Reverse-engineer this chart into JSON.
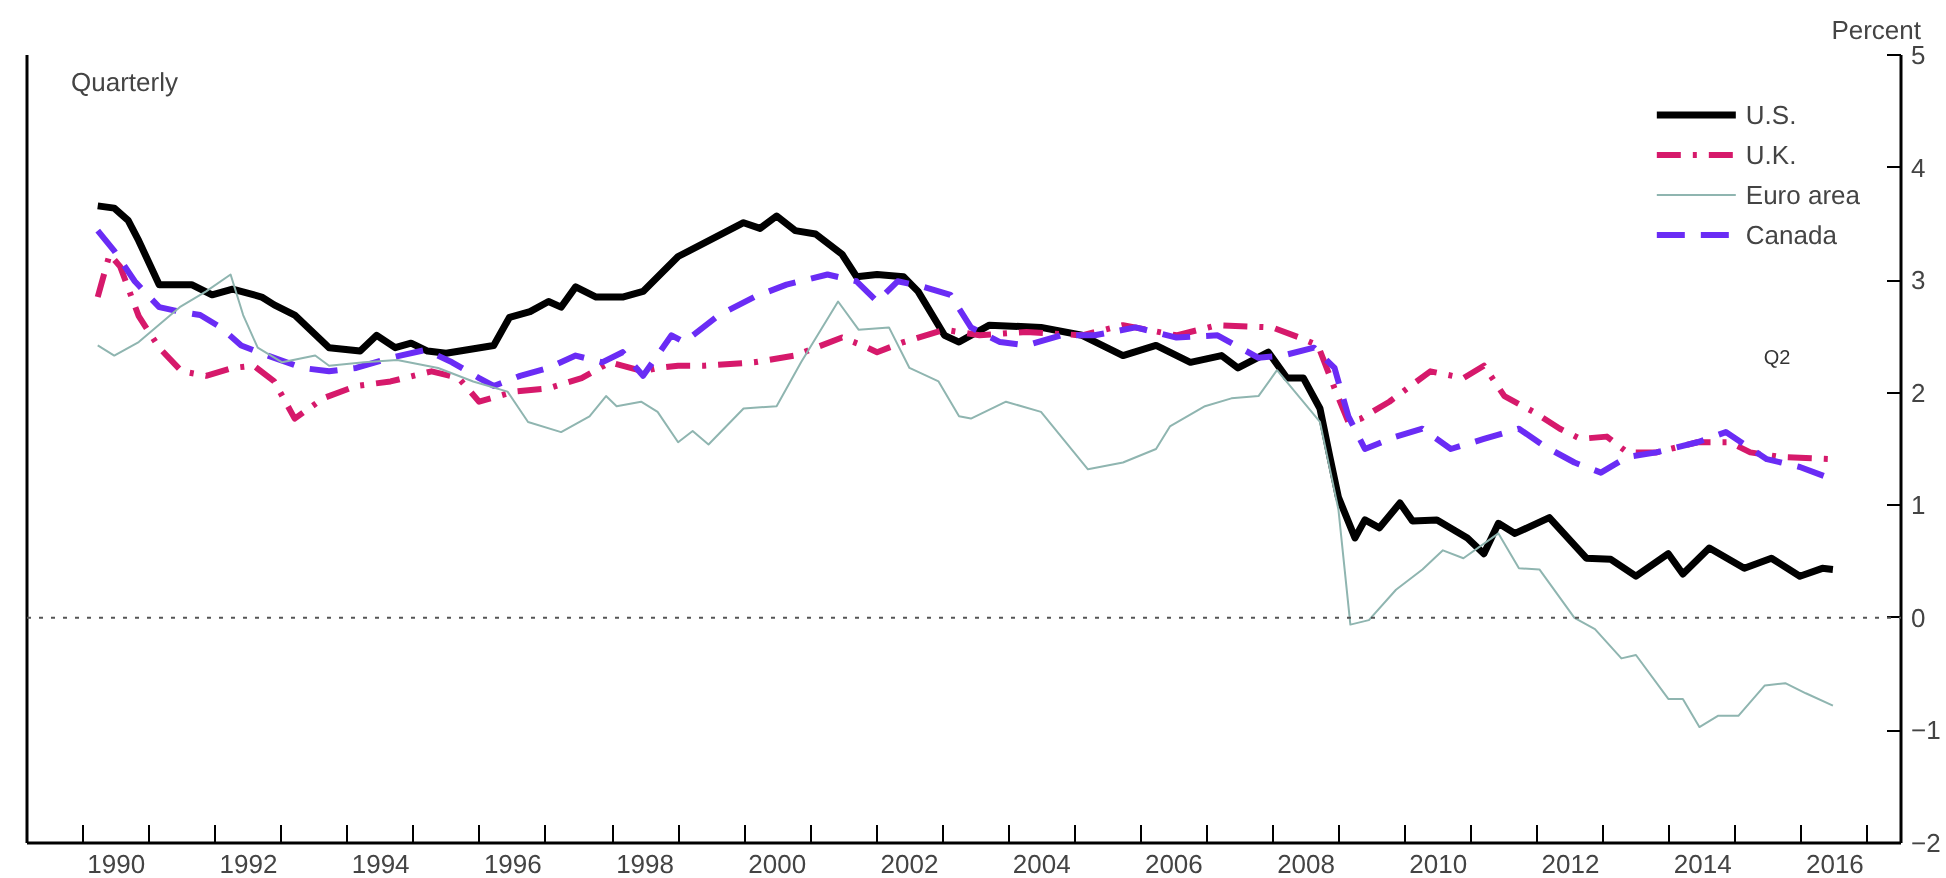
{
  "chart_data": {
    "type": "line",
    "ylabel": "Percent",
    "annotations": [
      "Quarterly",
      "Q2"
    ],
    "xlim": [
      1989.15,
      2017.5
    ],
    "ylim": [
      -2,
      5
    ],
    "yticks": [
      -2,
      -1,
      0,
      1,
      2,
      3,
      4,
      5
    ],
    "xticks": [
      {
        "value": 1990,
        "label": null
      },
      {
        "value": 1991,
        "label": null
      },
      {
        "value": 1992,
        "label": null
      },
      {
        "value": 1993,
        "label": null
      },
      {
        "value": 1994,
        "label": null
      },
      {
        "value": 1995,
        "label": null
      },
      {
        "value": 1996,
        "label": null
      },
      {
        "value": 1997,
        "label": null
      },
      {
        "value": 1998,
        "label": null
      },
      {
        "value": 1999,
        "label": null
      },
      {
        "value": 2000,
        "label": null
      },
      {
        "value": 2001,
        "label": null
      },
      {
        "value": 2002,
        "label": null
      },
      {
        "value": 2003,
        "label": null
      },
      {
        "value": 2004,
        "label": null
      },
      {
        "value": 2005,
        "label": null
      },
      {
        "value": 2006,
        "label": null
      },
      {
        "value": 2007,
        "label": null
      },
      {
        "value": 2008,
        "label": null
      },
      {
        "value": 2009,
        "label": null
      },
      {
        "value": 2010,
        "label": null
      },
      {
        "value": 2011,
        "label": null
      },
      {
        "value": 2012,
        "label": null
      },
      {
        "value": 2013,
        "label": null
      },
      {
        "value": 2014,
        "label": null
      },
      {
        "value": 2015,
        "label": null
      },
      {
        "value": 2016,
        "label": null
      },
      {
        "value": 2017,
        "label": null
      },
      {
        "value": 1990.5,
        "label": "1990"
      },
      {
        "value": 1992.5,
        "label": "1992"
      },
      {
        "value": 1994.5,
        "label": "1994"
      },
      {
        "value": 1996.5,
        "label": "1996"
      },
      {
        "value": 1998.5,
        "label": "1998"
      },
      {
        "value": 2000.5,
        "label": "2000"
      },
      {
        "value": 2002.5,
        "label": "2002"
      },
      {
        "value": 2004.5,
        "label": "2004"
      },
      {
        "value": 2006.5,
        "label": "2006"
      },
      {
        "value": 2008.5,
        "label": "2008"
      },
      {
        "value": 2010.5,
        "label": "2010"
      },
      {
        "value": 2012.5,
        "label": "2012"
      },
      {
        "value": 2014.5,
        "label": "2014"
      },
      {
        "value": 2016.5,
        "label": "2016"
      }
    ],
    "grid": false,
    "legend": "top right",
    "ref_lines": [
      {
        "axis": "y",
        "value": 0,
        "label": null,
        "color": "#555555",
        "line_style": "dotted"
      }
    ],
    "series": [
      {
        "name": "U.S.",
        "color": "#000000",
        "line_style": "solid",
        "x": [
          1990.22,
          1990.47,
          1990.68,
          1990.84,
          1991.15,
          1991.64,
          1991.95,
          1992.26,
          1992.7,
          1992.89,
          1993.2,
          1993.72,
          1994.19,
          1994.44,
          1994.72,
          1994.96,
          1995.21,
          1995.49,
          1996.21,
          1996.45,
          1996.76,
          1997.04,
          1997.23,
          1997.45,
          1997.76,
          1998.16,
          1998.47,
          1999.0,
          1999.99,
          2000.24,
          2000.49,
          2000.77,
          2001.08,
          2001.48,
          2001.7,
          2002.01,
          2002.41,
          2002.63,
          2003.03,
          2003.25,
          2003.71,
          2004.49,
          2005.11,
          2005.73,
          2006.23,
          2006.75,
          2007.22,
          2007.47,
          2007.93,
          2008.21,
          2008.46,
          2008.71,
          2008.86,
          2008.99,
          2009.24,
          2009.39,
          2009.61,
          2009.92,
          2010.11,
          2010.48,
          2010.94,
          2011.19,
          2011.41,
          2011.66,
          2012.18,
          2012.74,
          2013.11,
          2013.49,
          2013.98,
          2014.2,
          2014.6,
          2015.13,
          2015.54,
          2015.97,
          2016.31,
          2016.47
        ],
        "values": [
          3.66,
          3.64,
          3.53,
          3.35,
          2.96,
          2.96,
          2.87,
          2.92,
          2.85,
          2.78,
          2.69,
          2.4,
          2.37,
          2.51,
          2.4,
          2.44,
          2.37,
          2.35,
          2.42,
          2.67,
          2.72,
          2.81,
          2.76,
          2.94,
          2.85,
          2.85,
          2.9,
          3.21,
          3.51,
          3.46,
          3.57,
          3.44,
          3.41,
          3.23,
          3.03,
          3.05,
          3.03,
          2.9,
          2.51,
          2.45,
          2.6,
          2.58,
          2.51,
          2.33,
          2.42,
          2.27,
          2.33,
          2.22,
          2.36,
          2.13,
          2.13,
          1.86,
          1.43,
          1.07,
          0.71,
          0.87,
          0.8,
          1.02,
          0.86,
          0.87,
          0.71,
          0.57,
          0.84,
          0.75,
          0.89,
          0.53,
          0.52,
          0.37,
          0.57,
          0.39,
          0.62,
          0.44,
          0.53,
          0.37,
          0.44,
          0.43
        ]
      },
      {
        "name": "U.K.",
        "color": "#d6196b",
        "line_style": "dashdot",
        "x": [
          1990.22,
          1990.4,
          1990.56,
          1990.84,
          1991.15,
          1991.49,
          1991.86,
          1992.26,
          1992.58,
          1992.89,
          1993.2,
          1993.63,
          1994.13,
          1994.65,
          1995.27,
          1995.68,
          1995.99,
          1996.52,
          1997.04,
          1997.54,
          1997.97,
          1998.47,
          1998.69,
          1999.0,
          1999.4,
          2000.15,
          2000.77,
          2001.48,
          2001.79,
          2002.01,
          2002.41,
          2003.03,
          2003.56,
          2004.27,
          2005.11,
          2005.73,
          2006.54,
          2007.16,
          2007.99,
          2008.4,
          2008.68,
          2008.93,
          2009.14,
          2009.33,
          2009.76,
          2010.38,
          2010.88,
          2011.19,
          2011.5,
          2011.94,
          2012.34,
          2012.65,
          2013.05,
          2013.36,
          2013.8,
          2014.42,
          2014.91,
          2015.22,
          2015.66,
          2016.47
        ],
        "values": [
          2.85,
          3.23,
          3.12,
          2.68,
          2.4,
          2.19,
          2.15,
          2.22,
          2.24,
          2.1,
          1.77,
          1.95,
          2.06,
          2.1,
          2.19,
          2.13,
          1.92,
          2.01,
          2.04,
          2.13,
          2.27,
          2.19,
          2.22,
          2.24,
          2.24,
          2.27,
          2.33,
          2.49,
          2.42,
          2.36,
          2.45,
          2.56,
          2.51,
          2.54,
          2.51,
          2.6,
          2.51,
          2.6,
          2.58,
          2.49,
          2.42,
          2.04,
          1.74,
          1.77,
          1.92,
          2.19,
          2.13,
          2.24,
          1.97,
          1.83,
          1.68,
          1.59,
          1.61,
          1.47,
          1.47,
          1.56,
          1.56,
          1.47,
          1.43,
          1.41
        ]
      },
      {
        "name": "Euro area",
        "color": "#8fb5b0",
        "line_style": "solid",
        "x": [
          1990.22,
          1990.47,
          1990.84,
          1991.46,
          1991.86,
          1992.23,
          1992.42,
          1992.64,
          1993.01,
          1993.51,
          1993.72,
          1994.25,
          1994.75,
          1995.37,
          1995.9,
          1996.42,
          1996.73,
          1997.23,
          1997.66,
          1997.91,
          1998.07,
          1998.44,
          1998.69,
          1999.0,
          1999.22,
          1999.46,
          1999.99,
          2000.49,
          2000.86,
          2001.42,
          2001.73,
          2002.19,
          2002.5,
          2002.94,
          2003.25,
          2003.43,
          2003.96,
          2004.49,
          2005.2,
          2005.73,
          2006.23,
          2006.44,
          2006.97,
          2007.37,
          2007.78,
          2008.06,
          2008.71,
          2008.99,
          2009.17,
          2009.45,
          2009.86,
          2010.26,
          2010.57,
          2010.88,
          2011.41,
          2011.72,
          2012.03,
          2012.56,
          2012.87,
          2013.27,
          2013.49,
          2013.98,
          2014.2,
          2014.45,
          2014.73,
          2015.04,
          2015.44,
          2015.75,
          2016.06,
          2016.47
        ],
        "values": [
          2.42,
          2.33,
          2.45,
          2.76,
          2.9,
          3.05,
          2.69,
          2.4,
          2.27,
          2.33,
          2.24,
          2.27,
          2.29,
          2.22,
          2.1,
          2.01,
          1.74,
          1.65,
          1.79,
          1.97,
          1.88,
          1.92,
          1.83,
          1.56,
          1.66,
          1.54,
          1.86,
          1.88,
          2.27,
          2.81,
          2.56,
          2.58,
          2.22,
          2.1,
          1.79,
          1.77,
          1.92,
          1.83,
          1.32,
          1.38,
          1.5,
          1.7,
          1.88,
          1.95,
          1.97,
          2.2,
          1.74,
          0.96,
          -0.06,
          -0.02,
          0.25,
          0.43,
          0.6,
          0.53,
          0.75,
          0.44,
          0.43,
          0.0,
          -0.1,
          -0.36,
          -0.33,
          -0.72,
          -0.72,
          -0.97,
          -0.87,
          -0.87,
          -0.6,
          -0.58,
          -0.67,
          -0.78
        ]
      },
      {
        "name": "Canada",
        "color": "#6a2cf5",
        "line_style": "dashed",
        "x": [
          1990.22,
          1990.47,
          1990.78,
          1991.15,
          1991.46,
          1991.77,
          1992.08,
          1992.39,
          1992.79,
          1993.32,
          1993.72,
          1994.13,
          1994.65,
          1995.18,
          1995.58,
          1995.99,
          1996.21,
          1996.61,
          1997.04,
          1997.45,
          1997.85,
          1998.16,
          1998.47,
          1998.9,
          1999.09,
          1999.62,
          2000.15,
          2000.64,
          2001.26,
          2001.7,
          2002.01,
          2002.32,
          2002.72,
          2003.12,
          2003.43,
          2003.87,
          2004.27,
          2004.8,
          2005.3,
          2005.92,
          2006.54,
          2007.16,
          2007.78,
          2008.15,
          2008.62,
          2008.93,
          2009.14,
          2009.39,
          2009.86,
          2010.26,
          2010.69,
          2011.19,
          2011.72,
          2012.12,
          2012.56,
          2012.96,
          2013.36,
          2013.8,
          2014.42,
          2014.85,
          2015.47,
          2015.97,
          2016.47
        ],
        "values": [
          3.44,
          3.26,
          2.99,
          2.76,
          2.72,
          2.69,
          2.58,
          2.42,
          2.33,
          2.22,
          2.19,
          2.22,
          2.31,
          2.38,
          2.27,
          2.13,
          2.06,
          2.15,
          2.22,
          2.33,
          2.27,
          2.36,
          2.15,
          2.51,
          2.45,
          2.69,
          2.85,
          2.96,
          3.05,
          2.99,
          2.81,
          2.99,
          2.94,
          2.87,
          2.58,
          2.45,
          2.42,
          2.51,
          2.51,
          2.58,
          2.49,
          2.51,
          2.31,
          2.33,
          2.4,
          2.22,
          1.79,
          1.5,
          1.61,
          1.68,
          1.5,
          1.59,
          1.68,
          1.52,
          1.38,
          1.29,
          1.43,
          1.47,
          1.56,
          1.65,
          1.41,
          1.34,
          1.23
        ]
      }
    ]
  }
}
